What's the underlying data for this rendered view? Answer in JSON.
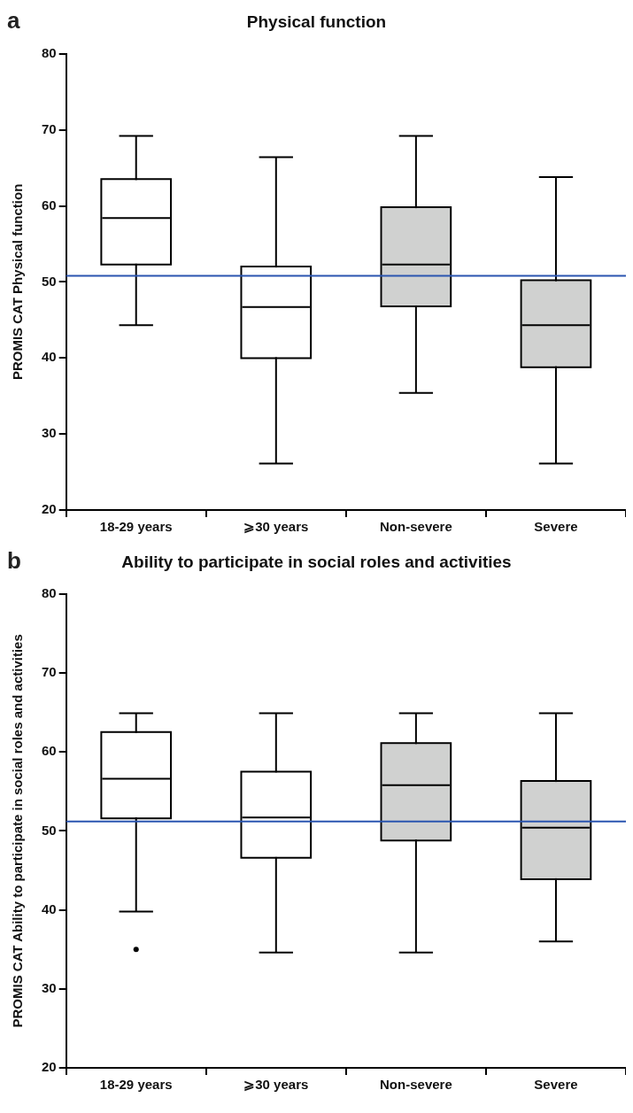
{
  "chart_data": [
    {
      "type": "box",
      "title": "Physical function",
      "ylabel": "PROMIS CAT Physical function",
      "annotations": [
        "a"
      ],
      "categories": [
        "18-29 years",
        "⩾30 years",
        "Non-severe",
        "Severe"
      ],
      "color": "#000000",
      "colors": [
        "#ffffff",
        "#ffffff",
        "#d0d1d0",
        "#d0d1d0"
      ],
      "boxes": [
        {
          "low": 44.3,
          "q1": 52.4,
          "median": 58.4,
          "q3": 63.4,
          "high": 69.2
        },
        {
          "low": 26.1,
          "q1": 40.1,
          "median": 46.7,
          "q3": 51.9,
          "high": 66.4
        },
        {
          "low": 35.4,
          "q1": 46.9,
          "median": 52.3,
          "q3": 59.7,
          "high": 69.2
        },
        {
          "low": 26.1,
          "q1": 38.9,
          "median": 44.3,
          "q3": 50.1,
          "high": 63.8
        }
      ],
      "ylim": [
        20,
        80
      ],
      "yticks": [
        20,
        30,
        40,
        50,
        60,
        70,
        80
      ],
      "ref_lines": [
        {
          "axis": "y",
          "value": 50.8,
          "color": "#2a55b0"
        }
      ]
    },
    {
      "type": "box",
      "title": "Ability to participate in social roles and activities",
      "ylabel": "PROMIS CAT Ability to participate in social roles and activities",
      "annotations": [
        "b"
      ],
      "categories": [
        "18-29 years",
        "⩾30 years",
        "Non-severe",
        "Severe"
      ],
      "color": "#000000",
      "colors": [
        "#ffffff",
        "#ffffff",
        "#d0d1d0",
        "#d0d1d0"
      ],
      "boxes": [
        {
          "low": 39.8,
          "q1": 51.7,
          "median": 56.6,
          "q3": 62.4,
          "high": 64.9,
          "outliers": [
            35.0
          ]
        },
        {
          "low": 34.6,
          "q1": 46.7,
          "median": 51.7,
          "q3": 57.4,
          "high": 64.9
        },
        {
          "low": 34.6,
          "q1": 48.9,
          "median": 55.8,
          "q3": 61.0,
          "high": 64.9
        },
        {
          "low": 36.0,
          "q1": 44.0,
          "median": 50.4,
          "q3": 56.2,
          "high": 64.9
        }
      ],
      "ylim": [
        20,
        80
      ],
      "yticks": [
        20,
        30,
        40,
        50,
        60,
        70,
        80
      ],
      "ref_lines": [
        {
          "axis": "y",
          "value": 51.2,
          "color": "#2a55b0"
        }
      ]
    }
  ]
}
